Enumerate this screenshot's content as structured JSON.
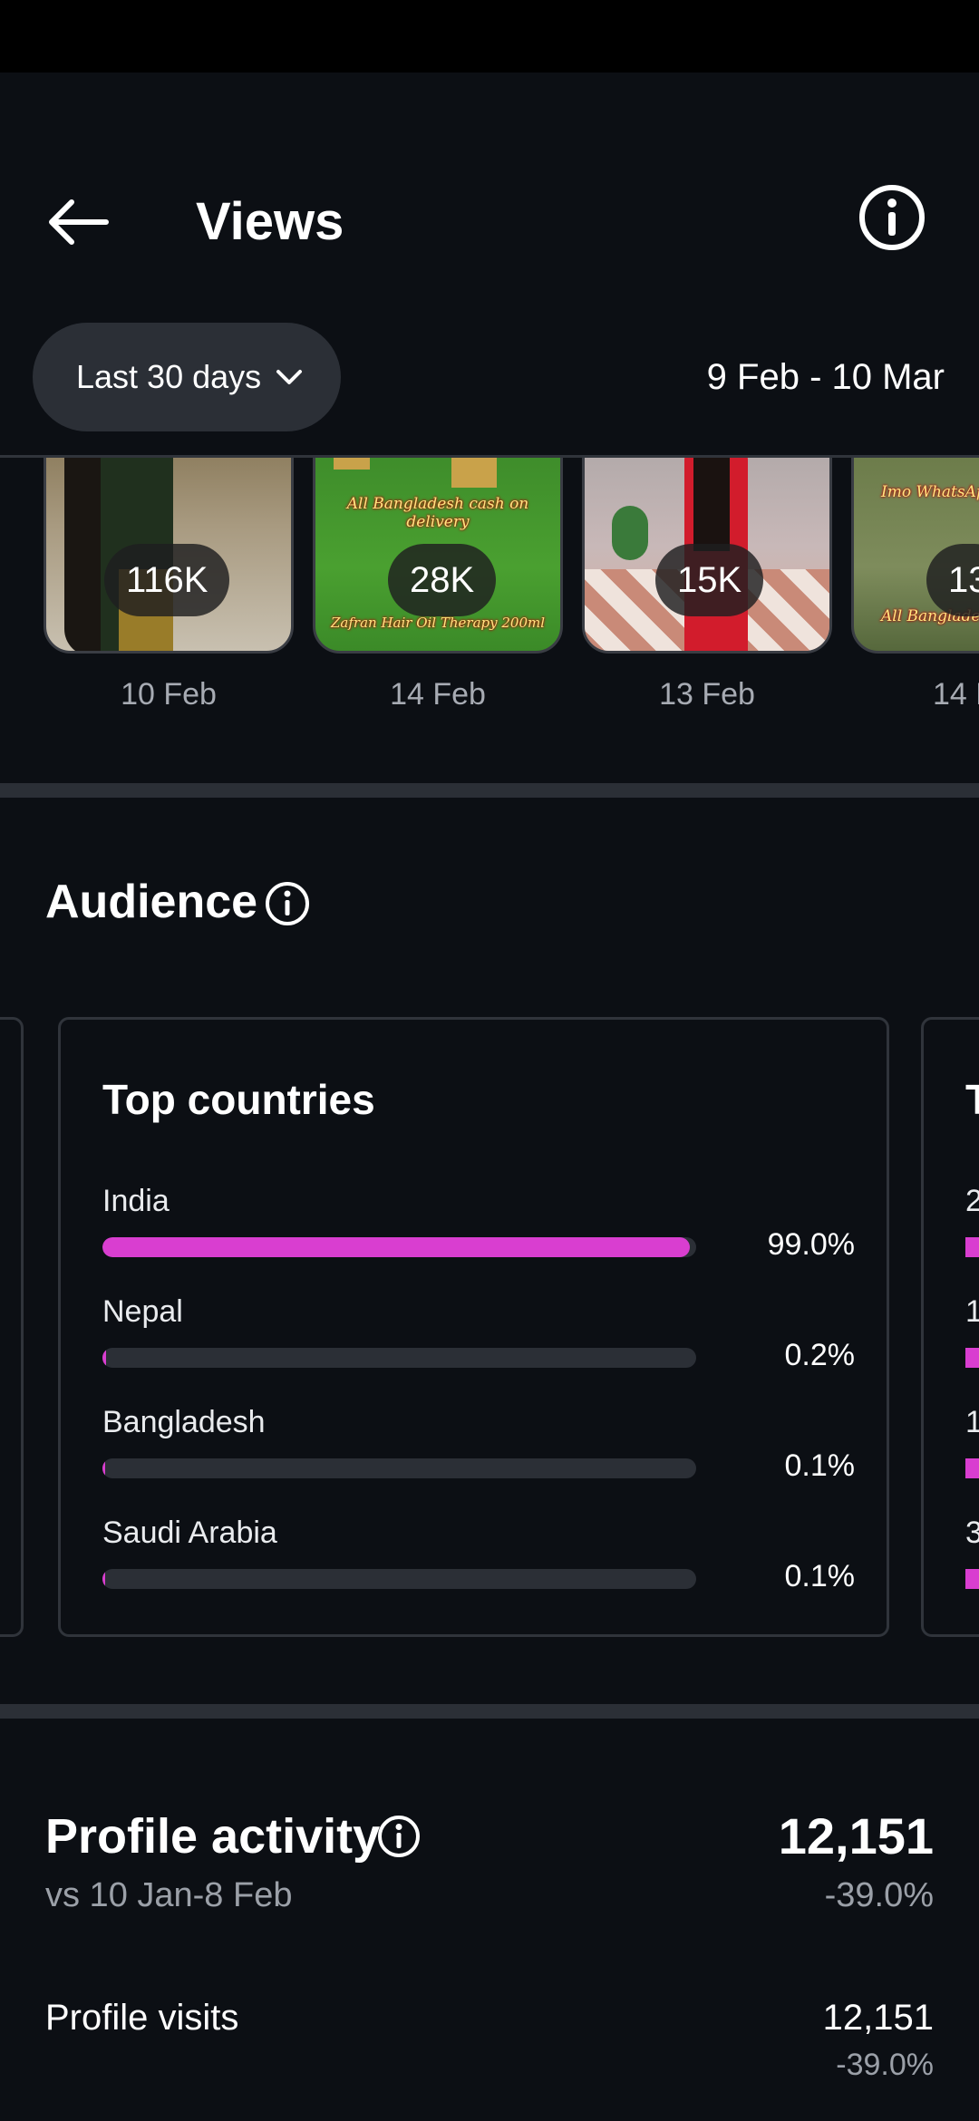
{
  "header": {
    "title": "Views",
    "range_label": "Last 30 days",
    "date_range": "9 Feb - 10 Mar",
    "back_icon": "arrow-left-icon",
    "info_icon": "info-icon"
  },
  "thumbnails": [
    {
      "views": "116K",
      "date": "10 Feb",
      "caption": ""
    },
    {
      "views": "28K",
      "date": "14 Feb",
      "caption": "All Bangladesh cash on delivery",
      "caption2": "Zafran Hair Oil Therapy 200ml"
    },
    {
      "views": "15K",
      "date": "13 Feb",
      "caption": ""
    },
    {
      "views": "13",
      "date": "14 F",
      "caption": "Imo WhatsApp",
      "caption2": "All Bangladesh"
    }
  ],
  "audience": {
    "title": "Audience",
    "card_title": "Top countries",
    "countries": [
      {
        "name": "India",
        "percent_label": "99.0%",
        "percent": 99.0
      },
      {
        "name": "Nepal",
        "percent_label": "0.2%",
        "percent": 0.2
      },
      {
        "name": "Bangladesh",
        "percent_label": "0.1%",
        "percent": 0.1
      },
      {
        "name": "Saudi Arabia",
        "percent_label": "0.1%",
        "percent": 0.1
      }
    ],
    "peek_card": {
      "title_initial": "T",
      "row_initials": [
        "2",
        "1",
        "1",
        "3"
      ]
    }
  },
  "profile_activity": {
    "title": "Profile activity",
    "compare": "vs 10 Jan-8 Feb",
    "total": "12,151",
    "total_change": "-39.0%",
    "visits_label": "Profile visits",
    "visits_value": "12,151",
    "visits_change": "-39.0%"
  },
  "colors": {
    "background": "#0c0f14",
    "bar_fill": "#d93ed0",
    "bar_track": "#2b2f36",
    "pill": "#2b2f36"
  }
}
